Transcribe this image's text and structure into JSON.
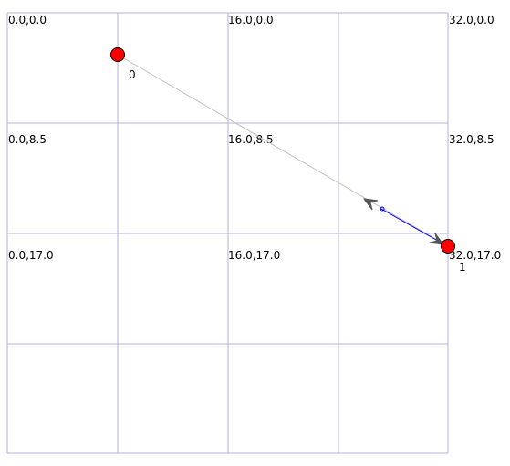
{
  "colors": {
    "grid": "#b3b3d9",
    "node_fill": "#ff0000",
    "node_stroke": "#000000",
    "edge_main": "#c0c0c0",
    "edge_active": "#0000ff",
    "arrowhead": "#555555"
  },
  "grid": {
    "columns": 4,
    "rows": 4
  },
  "coordinate_labels": [
    "0.0,0.0",
    "16.0,0.0",
    "32.0,0.0",
    "0.0,8.5",
    "16.0,8.5",
    "32.0,8.5",
    "0.0,17.0",
    "16.0,17.0",
    "32.0,17.0"
  ],
  "nodes": [
    {
      "id": "0",
      "label": "0"
    },
    {
      "id": "1",
      "label": "1"
    }
  ],
  "edges": [
    {
      "from": "0",
      "to": "1",
      "style": "main"
    },
    {
      "from": "1",
      "to": "0",
      "style": "active"
    }
  ]
}
